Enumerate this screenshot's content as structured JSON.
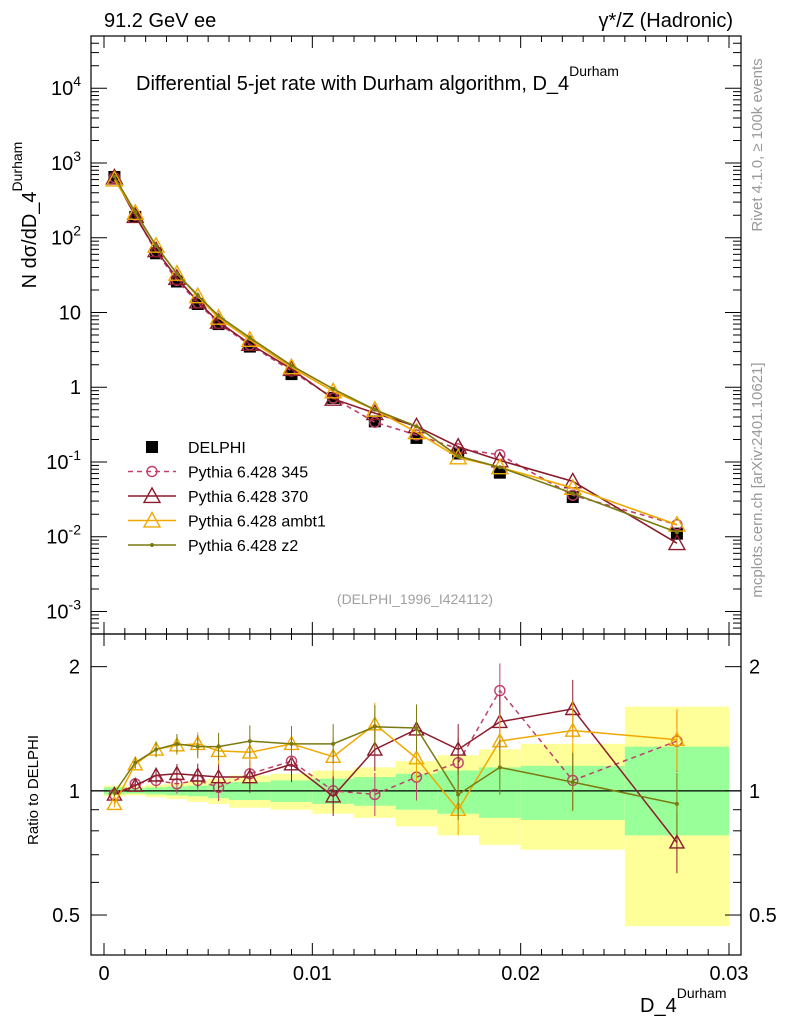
{
  "header": {
    "left": "91.2 GeV ee",
    "right": "γ*/Z (Hadronic)"
  },
  "side": {
    "rivet": "Rivet 4.1.0, ≥ 100k events",
    "mcplots": "mcplots.cern.ch [arXiv:2401.10621]"
  },
  "chart_data": {
    "type": "line",
    "title": "Differential 5-jet rate with Durham algorithm, D_4",
    "title_sup": "Durham",
    "analysis_tag": "(DELPHI_1996_I424112)",
    "xlabel": "D_4",
    "xlabel_sup": "Durham",
    "ylabel": "N  dσ/dD_4",
    "ylabel_sup": "Durham",
    "ratio_ylabel": "Ratio to DELPHI",
    "xlim": [
      0,
      0.03
    ],
    "ylim": [
      0.0005,
      50000
    ],
    "ratio_ylim": [
      0.4,
      2.4
    ],
    "x_ticks": [
      "0",
      "0.01",
      "0.02",
      "0.03"
    ],
    "y_ticks": [
      {
        "base": "10",
        "exp": "-3",
        "v": 0.001
      },
      {
        "base": "10",
        "exp": "-2",
        "v": 0.01
      },
      {
        "base": "10",
        "exp": "-1",
        "v": 0.1
      },
      {
        "base": "1",
        "exp": "",
        "v": 1
      },
      {
        "base": "10",
        "exp": "",
        "v": 10
      },
      {
        "base": "10",
        "exp": "2",
        "v": 100
      },
      {
        "base": "10",
        "exp": "3",
        "v": 1000
      },
      {
        "base": "10",
        "exp": "4",
        "v": 10000
      }
    ],
    "ratio_ticks": [
      "0.5",
      "1",
      "2"
    ],
    "x": [
      0.0005,
      0.0015,
      0.0025,
      0.0035,
      0.0045,
      0.0055,
      0.007,
      0.009,
      0.011,
      0.013,
      0.015,
      0.017,
      0.019,
      0.0225,
      0.0275
    ],
    "bin_edges": [
      0,
      0.001,
      0.002,
      0.003,
      0.004,
      0.005,
      0.006,
      0.008,
      0.01,
      0.012,
      0.014,
      0.016,
      0.018,
      0.02,
      0.025,
      0.03
    ],
    "band_stat": [
      [
        0.98,
        1.02
      ],
      [
        0.985,
        1.015
      ],
      [
        0.98,
        1.02
      ],
      [
        0.975,
        1.025
      ],
      [
        0.97,
        1.03
      ],
      [
        0.96,
        1.04
      ],
      [
        0.95,
        1.05
      ],
      [
        0.94,
        1.06
      ],
      [
        0.93,
        1.07
      ],
      [
        0.92,
        1.08
      ],
      [
        0.9,
        1.1
      ],
      [
        0.88,
        1.12
      ],
      [
        0.86,
        1.14
      ],
      [
        0.85,
        1.15
      ],
      [
        0.78,
        1.28
      ]
    ],
    "band_total": [
      [
        0.97,
        1.03
      ],
      [
        0.975,
        1.025
      ],
      [
        0.965,
        1.035
      ],
      [
        0.955,
        1.045
      ],
      [
        0.94,
        1.06
      ],
      [
        0.93,
        1.07
      ],
      [
        0.91,
        1.09
      ],
      [
        0.9,
        1.1
      ],
      [
        0.88,
        1.12
      ],
      [
        0.86,
        1.14
      ],
      [
        0.82,
        1.18
      ],
      [
        0.78,
        1.22
      ],
      [
        0.74,
        1.26
      ],
      [
        0.72,
        1.3
      ],
      [
        0.47,
        1.6
      ]
    ],
    "series": [
      {
        "name": "DELPHI",
        "color": "#000000",
        "marker": "square",
        "line": "none",
        "values": [
          650,
          190,
          62,
          26,
          13,
          7,
          3.5,
          1.5,
          0.72,
          0.35,
          0.21,
          0.13,
          0.072,
          0.034,
          0.011
        ]
      },
      {
        "name": "Pythia 6.428 345",
        "color": "#c0406a",
        "marker": "circle",
        "line": "dashed",
        "values": [
          640,
          200,
          65,
          27,
          13.5,
          7.1,
          3.7,
          1.65,
          0.72,
          0.34,
          0.23,
          0.15,
          0.125,
          0.036,
          0.0145
        ],
        "ratio": [
          0.98,
          1.04,
          1.06,
          1.04,
          1.06,
          1.02,
          1.1,
          1.18,
          1.0,
          0.98,
          1.08,
          1.17,
          1.75,
          1.06,
          1.32
        ]
      },
      {
        "name": "Pythia 6.428 370",
        "color": "#8b1c2c",
        "marker": "triangle-open",
        "line": "solid",
        "values": [
          640,
          195,
          68,
          29,
          14,
          7.5,
          3.8,
          1.75,
          0.7,
          0.45,
          0.3,
          0.16,
          0.105,
          0.055,
          0.0082
        ],
        "ratio": [
          0.98,
          1.03,
          1.09,
          1.1,
          1.09,
          1.08,
          1.08,
          1.16,
          0.97,
          1.26,
          1.41,
          1.26,
          1.47,
          1.58,
          0.75
        ]
      },
      {
        "name": "Pythia 6.428 ambt1",
        "color": "#f0a800",
        "marker": "triangle-open",
        "line": "solid",
        "values": [
          600,
          215,
          78,
          33,
          16.5,
          8.5,
          4.3,
          1.85,
          0.88,
          0.5,
          0.25,
          0.115,
          0.085,
          0.045,
          0.0145
        ],
        "ratio": [
          0.93,
          1.16,
          1.26,
          1.29,
          1.3,
          1.25,
          1.24,
          1.3,
          1.21,
          1.45,
          1.2,
          0.9,
          1.32,
          1.4,
          1.33
        ]
      },
      {
        "name": "Pythia 6.428 z2",
        "color": "#7a7a10",
        "marker": "dot",
        "line": "solid",
        "values": [
          660,
          220,
          78,
          33,
          17,
          9,
          4.6,
          1.95,
          0.95,
          0.5,
          0.3,
          0.12,
          0.085,
          0.038,
          0.0115
        ],
        "ratio": [
          0.99,
          1.17,
          1.26,
          1.3,
          1.28,
          1.28,
          1.32,
          1.3,
          1.3,
          1.43,
          1.42,
          0.98,
          1.14,
          1.05,
          0.93
        ]
      }
    ]
  }
}
